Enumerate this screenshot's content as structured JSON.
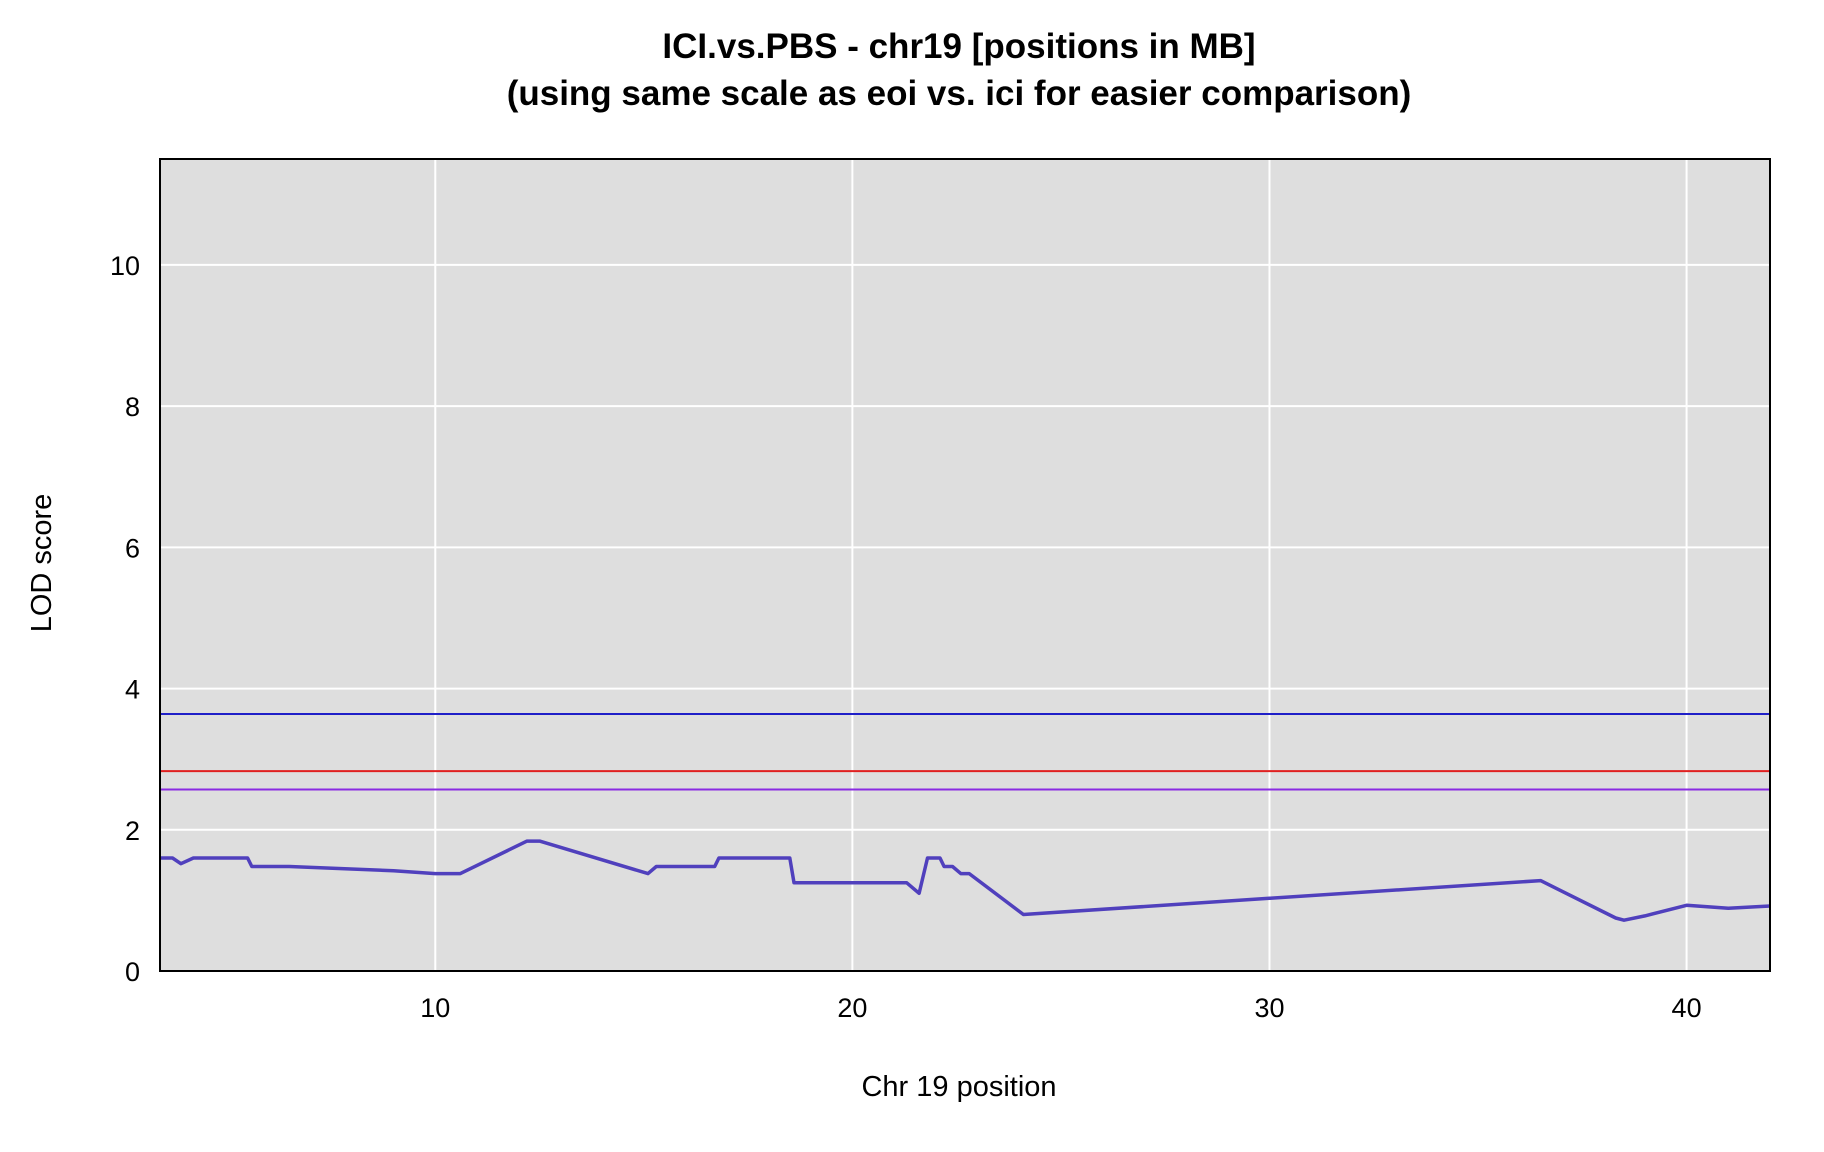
{
  "chart_data": {
    "type": "line",
    "title": "ICI.vs.PBS - chr19 [positions in MB]",
    "subtitle": "(using same scale as eoi vs. ici for easier comparison)",
    "xlabel": "Chr 19 position",
    "ylabel": "LOD score",
    "xlim": [
      3.4,
      42.0
    ],
    "ylim": [
      0,
      11.5
    ],
    "x_ticks": [
      10,
      20,
      30,
      40
    ],
    "y_ticks": [
      0,
      2,
      4,
      6,
      8,
      10
    ],
    "grid": true,
    "background_color": "#dedede",
    "grid_color": "#ffffff",
    "series": [
      {
        "color": "#5040bd",
        "x": [
          3.4,
          3.7,
          3.9,
          4.2,
          4.6,
          5.0,
          5.3,
          5.5,
          5.6,
          6.0,
          6.5,
          9.0,
          10.0,
          10.6,
          12.2,
          12.5,
          15.1,
          15.3,
          16.0,
          16.7,
          16.8,
          18.5,
          18.6,
          20.0,
          21.3,
          21.6,
          21.8,
          22.1,
          22.2,
          22.4,
          22.6,
          22.8,
          24.1,
          30.0,
          36.5,
          38.3,
          38.5,
          39.0,
          40.0,
          41.0,
          42.0
        ],
        "y": [
          1.6,
          1.6,
          1.52,
          1.6,
          1.6,
          1.6,
          1.6,
          1.6,
          1.48,
          1.48,
          1.48,
          1.42,
          1.38,
          1.38,
          1.84,
          1.84,
          1.38,
          1.48,
          1.48,
          1.48,
          1.6,
          1.6,
          1.25,
          1.25,
          1.25,
          1.1,
          1.6,
          1.6,
          1.48,
          1.48,
          1.38,
          1.38,
          0.8,
          1.03,
          1.28,
          0.75,
          0.72,
          0.78,
          0.93,
          0.89,
          0.92
        ]
      }
    ],
    "thresholds": [
      {
        "value": 3.64,
        "color": "#1f1fc8"
      },
      {
        "value": 2.83,
        "color": "#e02020"
      },
      {
        "value": 2.57,
        "color": "#8a2be2"
      }
    ]
  }
}
